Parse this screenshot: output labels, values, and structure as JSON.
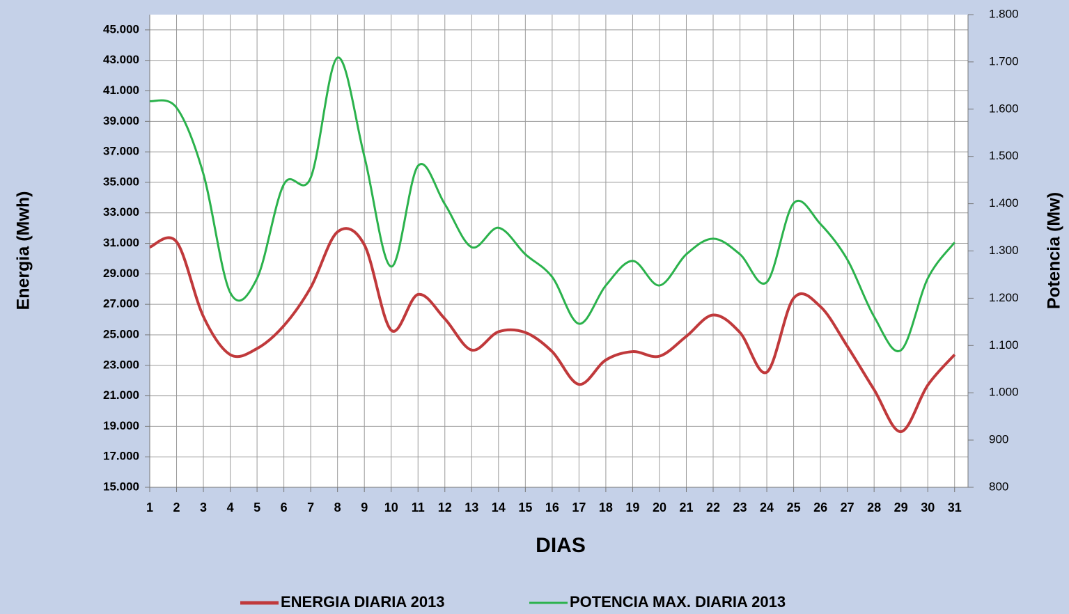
{
  "chart_data": {
    "type": "line",
    "y_label": "Energia (Mwh)",
    "y2_label": "Potencia (Mw)",
    "x_label": "DIAS",
    "x": [
      1,
      2,
      3,
      4,
      5,
      6,
      7,
      8,
      9,
      10,
      11,
      12,
      13,
      14,
      15,
      16,
      17,
      18,
      19,
      20,
      21,
      22,
      23,
      24,
      25,
      26,
      27,
      28,
      29,
      30,
      31
    ],
    "xlim": [
      1,
      31.5
    ],
    "xticks": [
      1,
      2,
      3,
      4,
      5,
      6,
      7,
      8,
      9,
      10,
      11,
      12,
      13,
      14,
      15,
      16,
      17,
      18,
      19,
      20,
      21,
      22,
      23,
      24,
      25,
      26,
      27,
      28,
      29,
      30,
      31
    ],
    "ylim": [
      15000,
      46000
    ],
    "yticks": [
      {
        "value": 15000,
        "label": "15.000"
      },
      {
        "value": 17000,
        "label": "17.000"
      },
      {
        "value": 19000,
        "label": "19.000"
      },
      {
        "value": 21000,
        "label": "21.000"
      },
      {
        "value": 23000,
        "label": "23.000"
      },
      {
        "value": 25000,
        "label": "25.000"
      },
      {
        "value": 27000,
        "label": "27.000"
      },
      {
        "value": 29000,
        "label": "29.000"
      },
      {
        "value": 31000,
        "label": "31.000"
      },
      {
        "value": 33000,
        "label": "33.000"
      },
      {
        "value": 35000,
        "label": "35.000"
      },
      {
        "value": 37000,
        "label": "37.000"
      },
      {
        "value": 39000,
        "label": "39.000"
      },
      {
        "value": 41000,
        "label": "41.000"
      },
      {
        "value": 43000,
        "label": "43.000"
      },
      {
        "value": 45000,
        "label": "45.000"
      }
    ],
    "y2lim": [
      800,
      1800
    ],
    "y2ticks": [
      800,
      900,
      {
        "value": 1000,
        "label": "1.000"
      },
      {
        "value": 1100,
        "label": "1.100"
      },
      {
        "value": 1200,
        "label": "1.200"
      },
      {
        "value": 1300,
        "label": "1.300"
      },
      {
        "value": 1400,
        "label": "1.400"
      },
      {
        "value": 1500,
        "label": "1.500"
      },
      {
        "value": 1600,
        "label": "1.600"
      },
      {
        "value": 1700,
        "label": "1.700"
      },
      {
        "value": 1800,
        "label": "1.800"
      }
    ],
    "grid": true,
    "legend": "bottom",
    "series": [
      {
        "name": "ENERGIA DIARIA 2013",
        "color": "#c0393b",
        "axis": "y",
        "values": [
          30750,
          31100,
          26200,
          23700,
          24100,
          25600,
          28100,
          31750,
          30900,
          25300,
          27650,
          26050,
          24000,
          25200,
          25150,
          23900,
          21750,
          23350,
          23900,
          23600,
          24900,
          26300,
          25150,
          22550,
          27400,
          26850,
          24250,
          21400,
          18650,
          21700,
          23700
        ]
      },
      {
        "name": "POTENCIA MAX. DIARIA 2013",
        "color": "#2bb24c",
        "axis": "y2",
        "values": [
          1617,
          1603,
          1463,
          1212,
          1242,
          1441,
          1455,
          1709,
          1500,
          1267,
          1480,
          1399,
          1308,
          1349,
          1293,
          1245,
          1146,
          1227,
          1279,
          1227,
          1293,
          1326,
          1293,
          1234,
          1401,
          1357,
          1282,
          1161,
          1090,
          1242,
          1318
        ]
      }
    ]
  }
}
